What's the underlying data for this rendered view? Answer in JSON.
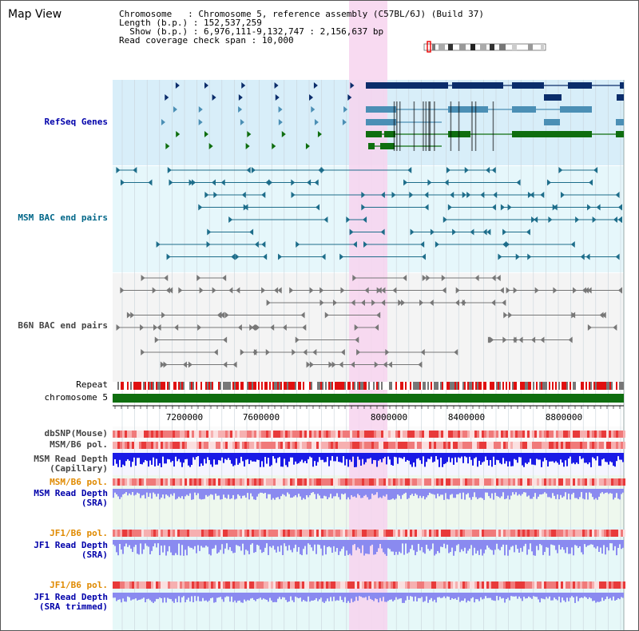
{
  "header": {
    "title": "Map View",
    "chromosome_key": "Chromosome",
    "chromosome_value": "Chromosome 5, reference assembly (C57BL/6J) (Build 37)",
    "length_key": "Length (b.p.)",
    "length_value": "152,537,259",
    "show_key": "Show (b.p.)",
    "show_value": "6,976,111-9,132,747 : 2,156,637 bp",
    "coverage_key": "Read coverage check span",
    "coverage_value": "10,000"
  },
  "tracks": {
    "refseq": "RefSeq Genes",
    "msm_bac": "MSM BAC end pairs",
    "b6n_bac": "B6N BAC end pairs",
    "repeat": "Repeat",
    "chromosome": "chromosome 5",
    "dbsnp": "dbSNP(Mouse)",
    "msm_b6_pol_1": "MSM/B6 pol.",
    "msm_depth_cap_1": "MSM Read Depth",
    "msm_depth_cap_2": "(Capillary)",
    "msm_b6_pol_2": "MSM/B6 pol.",
    "msm_depth_sra_1": "MSM Read Depth",
    "msm_depth_sra_2": "(SRA)",
    "jf1_b6_pol_1": "JF1/B6 pol.",
    "jf1_depth_sra_1": "JF1 Read Depth",
    "jf1_depth_sra_2": "(SRA)",
    "jf1_b6_pol_2": "JF1/B6 pol.",
    "jf1_depth_trim_1": "JF1 Read Depth",
    "jf1_depth_trim_2": "(SRA trimmed)"
  },
  "ruler": {
    "ticks": [
      "7200000",
      "7600000",
      "8000000",
      "8400000",
      "8800000"
    ]
  },
  "colors": {
    "refseq_bg": "#d8eef9",
    "msm_bg": "#e6f7fb",
    "b6n_bg": "#f4f4f4",
    "highlight": "#f7d4ef",
    "navy": "#0b2d6b",
    "steel": "#4b8fb5",
    "green": "#0f6e0f",
    "teal": "#1d6d8a",
    "gray_pair": "#777777",
    "depth_blue": "#1a1ae6",
    "depth_lav": "#8a8af0"
  }
}
